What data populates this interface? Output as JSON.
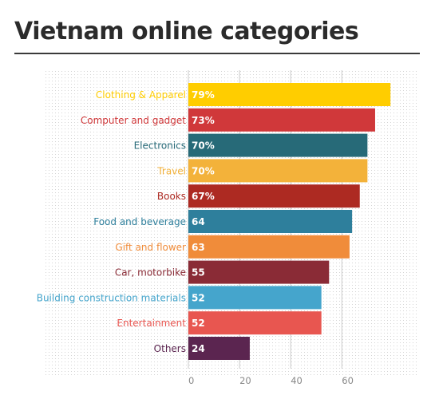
{
  "title": "Vietnam online categories",
  "chart_data": {
    "type": "bar",
    "orientation": "horizontal",
    "title": "Vietnam online categories",
    "xlabel": "",
    "ylabel": "",
    "xlim": [
      0,
      78
    ],
    "grid": true,
    "categories": [
      "Clothing & Apparel",
      "Computer and gadget",
      "Electronics",
      "Travel",
      "Books",
      "Food and beverage",
      "Gift and flower",
      "Car, motorbike",
      "Building construction materials",
      "Entertainment",
      "Others"
    ],
    "values": [
      79,
      73,
      70,
      70,
      67,
      64,
      63,
      55,
      52,
      52,
      24
    ],
    "value_labels": [
      "79%",
      "73%",
      "70%",
      "70%",
      "67%",
      "64",
      "63",
      "55",
      "52",
      "52",
      "24"
    ],
    "colors": [
      "#ffcd00",
      "#d0383a",
      "#276a78",
      "#f3b23a",
      "#ad2a22",
      "#2e7f9c",
      "#f08c3a",
      "#8a2b36",
      "#45a5cc",
      "#e85650",
      "#5b2550"
    ],
    "x_ticks": [
      0,
      20,
      40,
      60
    ]
  }
}
